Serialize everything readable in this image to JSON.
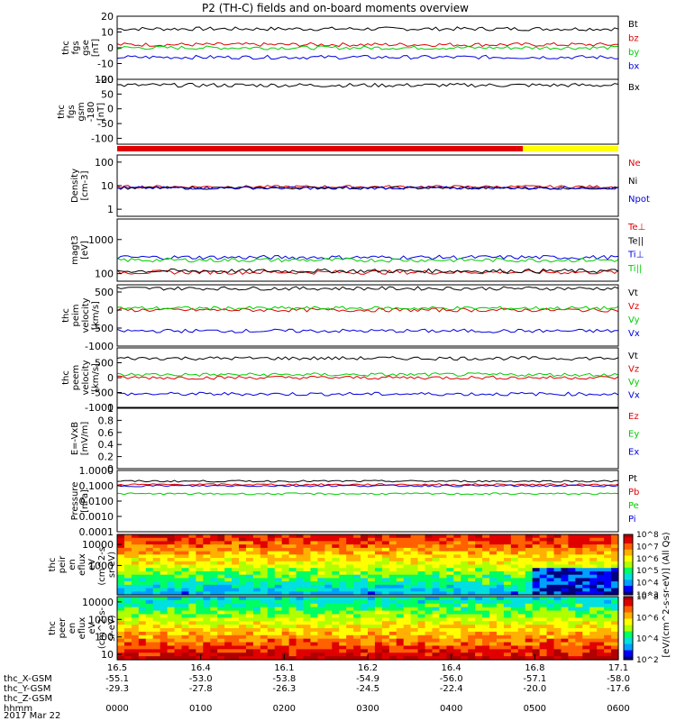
{
  "title": "P2 (TH-C) fields and on-board moments overview",
  "colors": {
    "black": "#000000",
    "red": "#e00000",
    "green": "#00cc00",
    "blue": "#0000e0",
    "yellow": "#ffff00"
  },
  "chart_data": [
    {
      "id": "fgs",
      "type": "line",
      "ylabel": [
        "thc",
        "fgs",
        "gse",
        "[nT]"
      ],
      "ylim": [
        -20,
        20
      ],
      "yticks": [
        -20,
        -10,
        0,
        10,
        20
      ],
      "series": [
        {
          "name": "Bt",
          "color": "black",
          "level": 12
        },
        {
          "name": "bz",
          "color": "red",
          "level": 2
        },
        {
          "name": "by",
          "color": "green",
          "level": 0
        },
        {
          "name": "bx",
          "color": "blue",
          "level": -6
        }
      ]
    },
    {
      "id": "fgs_gsm",
      "type": "line",
      "ylabel": [
        "thc",
        "fgs",
        "gsm",
        "-180",
        "[nT]"
      ],
      "ylim": [
        -120,
        100
      ],
      "yticks": [
        -100,
        -50,
        0,
        50,
        100
      ],
      "series": [
        {
          "name": "Bx",
          "color": "black",
          "level": 80
        }
      ]
    },
    {
      "id": "density",
      "type": "line",
      "log": true,
      "ylabel": [
        "Density",
        "[cm-3]"
      ],
      "ylim": [
        0.5,
        200
      ],
      "yticks": [
        1,
        10,
        100
      ],
      "series": [
        {
          "name": "Ne",
          "color": "red",
          "level": 9
        },
        {
          "name": "Ni",
          "color": "black",
          "level": 8
        },
        {
          "name": "Npot",
          "color": "blue",
          "level": 8
        }
      ]
    },
    {
      "id": "temp",
      "type": "line",
      "log": true,
      "ylabel": [
        "magt3",
        "[eV]"
      ],
      "ylim": [
        60,
        4000
      ],
      "yticks": [
        100,
        1000
      ],
      "series": [
        {
          "name": "Te⊥",
          "color": "red",
          "level": 110
        },
        {
          "name": "Te||",
          "color": "black",
          "level": 120
        },
        {
          "name": "Ti⊥",
          "color": "blue",
          "level": 300
        },
        {
          "name": "Ti||",
          "color": "green",
          "level": 250
        }
      ]
    },
    {
      "id": "peim",
      "type": "line",
      "ylabel": [
        "thc",
        "peim",
        "velocity",
        "[km/s]"
      ],
      "ylim": [
        -1000,
        700
      ],
      "yticks": [
        -1000,
        -500,
        0,
        500
      ],
      "series": [
        {
          "name": "Vt",
          "color": "black",
          "level": 600
        },
        {
          "name": "Vz",
          "color": "red",
          "level": 0
        },
        {
          "name": "Vy",
          "color": "green",
          "level": 50
        },
        {
          "name": "Vx",
          "color": "blue",
          "level": -580
        }
      ]
    },
    {
      "id": "peem",
      "type": "line",
      "ylabel": [
        "thc",
        "peem",
        "velocity",
        "[km/s]"
      ],
      "ylim": [
        -1000,
        1000
      ],
      "yticks": [
        -1000,
        -500,
        0,
        500
      ],
      "series": [
        {
          "name": "Vt",
          "color": "black",
          "level": 650
        },
        {
          "name": "Vz",
          "color": "red",
          "level": 0
        },
        {
          "name": "Vy",
          "color": "green",
          "level": 100
        },
        {
          "name": "Vx",
          "color": "blue",
          "level": -550
        }
      ]
    },
    {
      "id": "efield",
      "type": "line",
      "ylabel": [
        "E=-VxB",
        "[mV/m]"
      ],
      "ylim": [
        0,
        1
      ],
      "yticks": [
        0,
        0.2,
        0.4,
        0.6,
        0.8,
        1.0
      ],
      "series": [
        {
          "name": "Ez",
          "color": "red"
        },
        {
          "name": "Ey",
          "color": "green"
        },
        {
          "name": "Ex",
          "color": "blue"
        }
      ]
    },
    {
      "id": "pressure",
      "type": "line",
      "log": true,
      "ylabel": [
        "Pressure",
        "[nPa]"
      ],
      "ylim": [
        0.0001,
        1
      ],
      "yticks": [
        0.0001,
        0.001,
        0.01,
        0.1,
        1
      ],
      "yticklabels": [
        "0.0001",
        "0.0010",
        "0.0100",
        "0.1000",
        "1.0000"
      ],
      "series": [
        {
          "name": "Pt",
          "color": "black",
          "level": 0.2
        },
        {
          "name": "Pb",
          "color": "red",
          "level": 0.12
        },
        {
          "name": "Pe",
          "color": "green",
          "level": 0.03
        },
        {
          "name": "Pi",
          "color": "blue",
          "level": 0.1
        }
      ]
    },
    {
      "id": "peir",
      "type": "heatmap",
      "log": true,
      "ylabel": [
        "thc",
        "peir",
        "en",
        "eflux",
        "eV",
        "(cm^2-s-",
        "sr-eV)"
      ],
      "ylim": [
        40,
        30000
      ],
      "yticks": [
        1000,
        10000
      ],
      "colorbar": {
        "ticks": [
          "10^3",
          "10^4",
          "10^5",
          "10^6",
          "10^7",
          "10^8"
        ]
      }
    },
    {
      "id": "peer",
      "type": "heatmap",
      "log": true,
      "ylabel": [
        "thc",
        "peer",
        "en",
        "eflux",
        "eV",
        "(cm^2-s-",
        "sr-eV)"
      ],
      "ylim": [
        5,
        20000
      ],
      "yticks": [
        10,
        100,
        1000,
        10000
      ],
      "colorbar": {
        "ticks": [
          "10^2",
          "10^4",
          "10^6",
          "10^8"
        ]
      }
    }
  ],
  "colorbar_label": "[eV/(cm^2-s-sr-eV)] (All Qs)",
  "xaxis": {
    "rows": [
      {
        "label": "thc_X-GSM",
        "values": [
          "-55.1",
          "-53.0",
          "-53.8",
          "-54.9",
          "-56.0",
          "-57.1",
          "-58.0"
        ]
      },
      {
        "label": "thc_Y-GSM",
        "values": [
          "-29.3",
          "-27.8",
          "-26.3",
          "-24.5",
          "-22.4",
          "-20.0",
          "-17.6"
        ]
      },
      {
        "label": "thc_Z-GSM",
        "values": [
          "16.5",
          "16.4",
          "16.1",
          "16.2",
          "16.4",
          "16.8",
          "17.1"
        ]
      },
      {
        "label": "hhmm",
        "values": [
          "0000",
          "0100",
          "0200",
          "0300",
          "0400",
          "0500",
          "0600"
        ]
      }
    ],
    "top_row": [
      "16.5",
      "16.4",
      "16.1",
      "16.2",
      "16.4",
      "16.8",
      "17.1"
    ],
    "date": "2017 Mar 22"
  }
}
